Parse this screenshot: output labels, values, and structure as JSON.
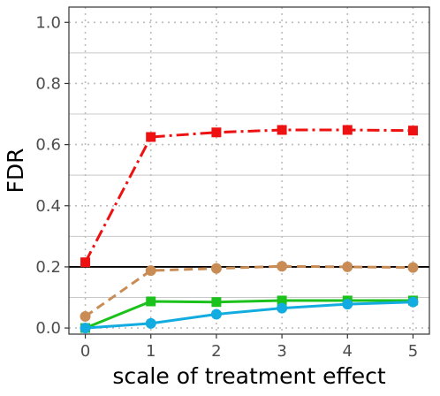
{
  "chart_data": {
    "type": "line",
    "title": "",
    "xlabel": "scale of treatment effect",
    "ylabel": "FDR",
    "x": [
      0,
      1,
      2,
      3,
      4,
      5
    ],
    "xlim": [
      -0.25,
      5.25
    ],
    "ylim": [
      -0.02,
      1.05
    ],
    "x_ticks": [
      0,
      1,
      2,
      3,
      4,
      5
    ],
    "y_ticks": [
      0.0,
      0.2,
      0.4,
      0.6,
      0.8,
      1.0
    ],
    "y_tick_labels": [
      "0.0",
      "0.2",
      "0.4",
      "0.6",
      "0.8",
      "1.0"
    ],
    "y_minor_ticks": [
      0.1,
      0.3,
      0.5,
      0.7,
      0.9
    ],
    "grid": true,
    "reference_line": {
      "y": 0.2,
      "color": "#000000"
    },
    "series": [
      {
        "values": [
          0.215,
          0.625,
          0.64,
          0.648,
          0.648,
          0.646
        ],
        "color": "#ee1111",
        "marker": "square",
        "dash": "14,5,3,5"
      },
      {
        "values": [
          0.038,
          0.188,
          0.195,
          0.202,
          0.2,
          0.198
        ],
        "color": "#c98c55",
        "marker": "circle",
        "dash": "10,6"
      },
      {
        "values": [
          0.0,
          0.087,
          0.085,
          0.09,
          0.09,
          0.09
        ],
        "color": "#1cc21c",
        "marker": "square",
        "dash": ""
      },
      {
        "values": [
          0.0,
          0.015,
          0.045,
          0.065,
          0.078,
          0.085
        ],
        "color": "#12ace0",
        "marker": "circle",
        "dash": ""
      }
    ]
  }
}
